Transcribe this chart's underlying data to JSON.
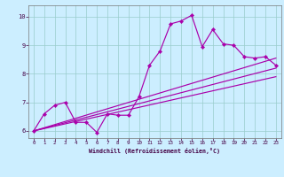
{
  "title": "",
  "xlabel": "Windchill (Refroidissement éolien,°C)",
  "background_color": "#cceeff",
  "grid_color": "#99cccc",
  "line_color": "#aa00aa",
  "xlim": [
    -0.5,
    23.5
  ],
  "ylim": [
    5.75,
    10.4
  ],
  "xticks": [
    0,
    1,
    2,
    3,
    4,
    5,
    6,
    7,
    8,
    9,
    10,
    11,
    12,
    13,
    14,
    15,
    16,
    17,
    18,
    19,
    20,
    21,
    22,
    23
  ],
  "yticks": [
    6,
    7,
    8,
    9,
    10
  ],
  "x": [
    0,
    1,
    2,
    3,
    4,
    5,
    6,
    7,
    8,
    9,
    10,
    11,
    12,
    13,
    14,
    15,
    16,
    17,
    18,
    19,
    20,
    21,
    22,
    23
  ],
  "line1": [
    6.0,
    6.6,
    6.9,
    7.0,
    6.3,
    6.3,
    5.95,
    6.6,
    6.55,
    6.55,
    7.2,
    8.3,
    8.8,
    9.75,
    9.85,
    10.05,
    8.95,
    9.55,
    9.05,
    9.0,
    8.6,
    8.55,
    8.6,
    8.3
  ],
  "line2_x": [
    0,
    23
  ],
  "line2_y": [
    6.0,
    8.55
  ],
  "line3_x": [
    0,
    23
  ],
  "line3_y": [
    6.0,
    8.2
  ],
  "line4_x": [
    0,
    23
  ],
  "line4_y": [
    6.0,
    7.9
  ]
}
